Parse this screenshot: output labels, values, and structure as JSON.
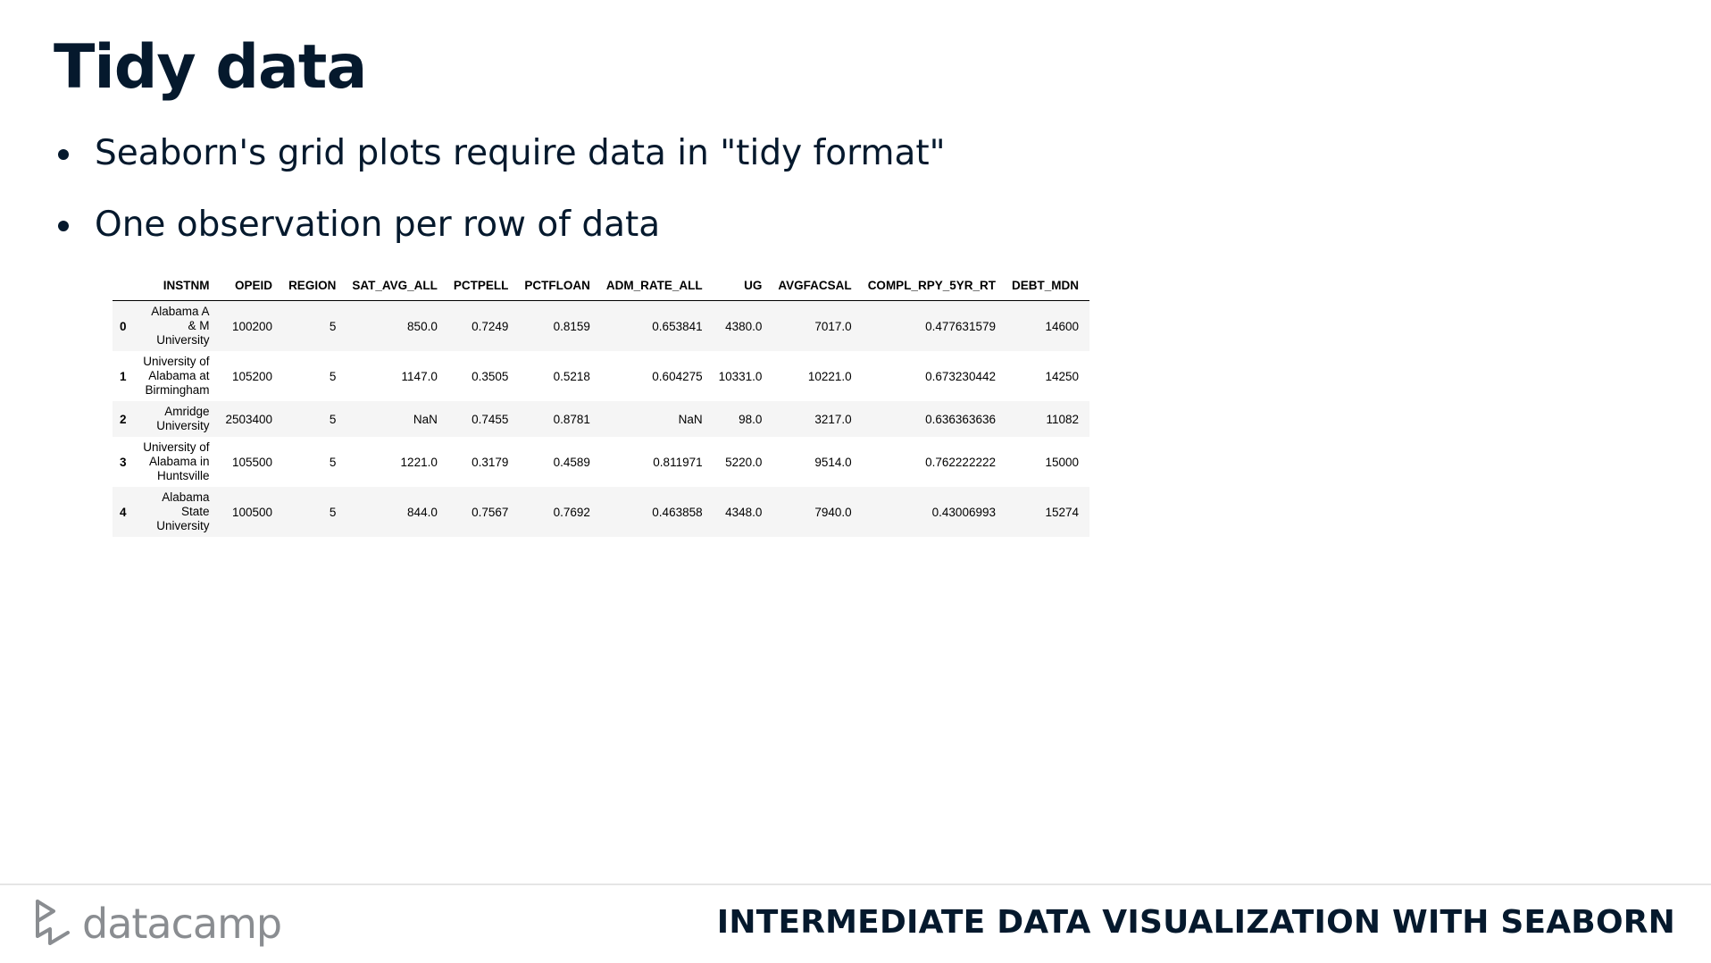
{
  "slide": {
    "title": "Tidy data",
    "bullets": [
      "Seaborn's grid plots require data in \"tidy format\"",
      "One observation per row of data"
    ]
  },
  "table": {
    "columns": [
      "",
      "INSTNM",
      "OPEID",
      "REGION",
      "SAT_AVG_ALL",
      "PCTPELL",
      "PCTFLOAN",
      "ADM_RATE_ALL",
      "UG",
      "AVGFACSAL",
      "COMPL_RPY_5YR_RT",
      "DEBT_MDN"
    ],
    "rows": [
      {
        "index": "0",
        "INSTNM": "Alabama A & M University",
        "OPEID": "100200",
        "REGION": "5",
        "SAT_AVG_ALL": "850.0",
        "PCTPELL": "0.7249",
        "PCTFLOAN": "0.8159",
        "ADM_RATE_ALL": "0.653841",
        "UG": "4380.0",
        "AVGFACSAL": "7017.0",
        "COMPL_RPY_5YR_RT": "0.477631579",
        "DEBT_MDN": "14600"
      },
      {
        "index": "1",
        "INSTNM": "University of Alabama at Birmingham",
        "OPEID": "105200",
        "REGION": "5",
        "SAT_AVG_ALL": "1147.0",
        "PCTPELL": "0.3505",
        "PCTFLOAN": "0.5218",
        "ADM_RATE_ALL": "0.604275",
        "UG": "10331.0",
        "AVGFACSAL": "10221.0",
        "COMPL_RPY_5YR_RT": "0.673230442",
        "DEBT_MDN": "14250"
      },
      {
        "index": "2",
        "INSTNM": "Amridge University",
        "OPEID": "2503400",
        "REGION": "5",
        "SAT_AVG_ALL": "NaN",
        "PCTPELL": "0.7455",
        "PCTFLOAN": "0.8781",
        "ADM_RATE_ALL": "NaN",
        "UG": "98.0",
        "AVGFACSAL": "3217.0",
        "COMPL_RPY_5YR_RT": "0.636363636",
        "DEBT_MDN": "11082"
      },
      {
        "index": "3",
        "INSTNM": "University of Alabama in Huntsville",
        "OPEID": "105500",
        "REGION": "5",
        "SAT_AVG_ALL": "1221.0",
        "PCTPELL": "0.3179",
        "PCTFLOAN": "0.4589",
        "ADM_RATE_ALL": "0.811971",
        "UG": "5220.0",
        "AVGFACSAL": "9514.0",
        "COMPL_RPY_5YR_RT": "0.762222222",
        "DEBT_MDN": "15000"
      },
      {
        "index": "4",
        "INSTNM": "Alabama State University",
        "OPEID": "100500",
        "REGION": "5",
        "SAT_AVG_ALL": "844.0",
        "PCTPELL": "0.7567",
        "PCTFLOAN": "0.7692",
        "ADM_RATE_ALL": "0.463858",
        "UG": "4348.0",
        "AVGFACSAL": "7940.0",
        "COMPL_RPY_5YR_RT": "0.43006993",
        "DEBT_MDN": "15274"
      }
    ]
  },
  "footer": {
    "logo_text": "datacamp",
    "logo_icon": "datacamp-logo-icon",
    "course": "INTERMEDIATE DATA VISUALIZATION WITH SEABORN"
  }
}
